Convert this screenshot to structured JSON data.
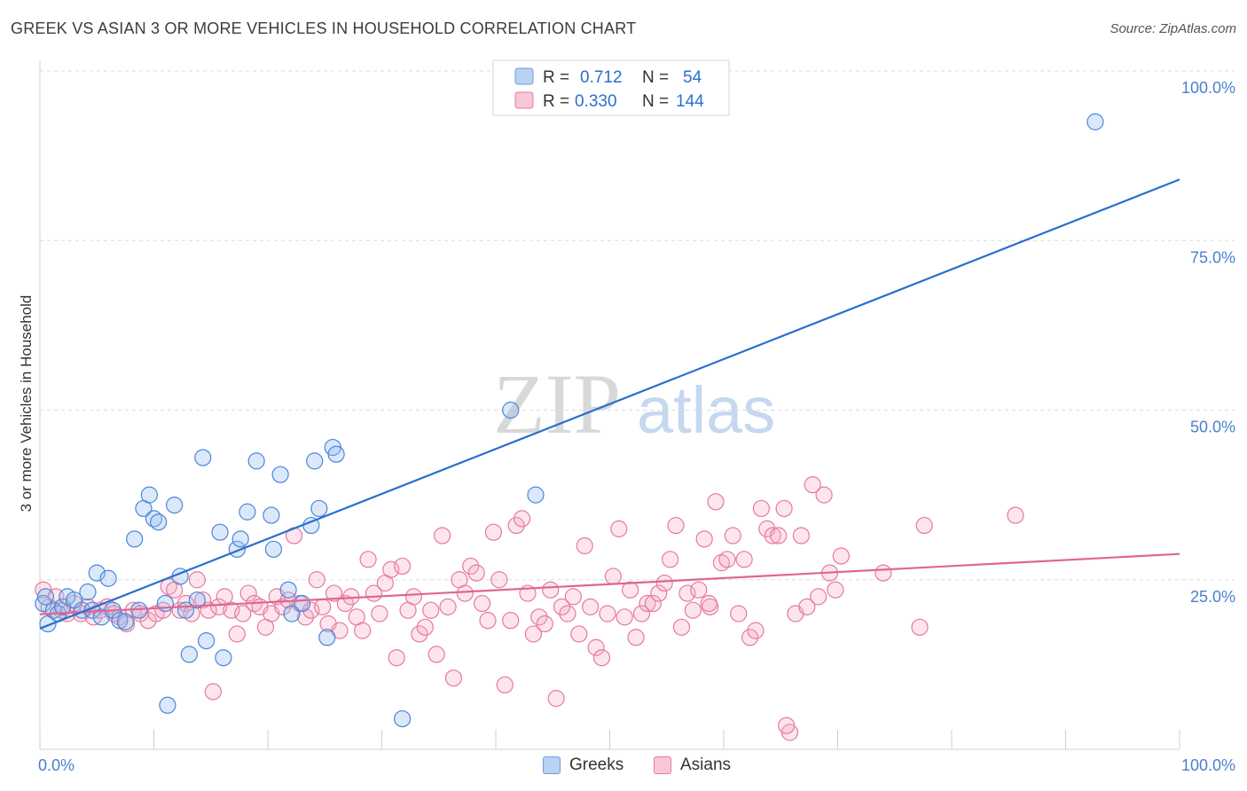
{
  "title": "GREEK VS ASIAN 3 OR MORE VEHICLES IN HOUSEHOLD CORRELATION CHART",
  "source": "Source: ZipAtlas.com",
  "watermark": {
    "zip": "ZIP",
    "atlas": "atlas"
  },
  "colors": {
    "greeks": "#4a86d8",
    "greeks_fill": "rgba(150,190,240,0.35)",
    "greeks_line": "#2a6fcf",
    "asians": "#e8799c",
    "asians_fill": "rgba(245,170,195,0.30)",
    "asians_line": "#e0668f",
    "tick": "#4a7fcf"
  },
  "legend": {
    "greeks": {
      "r_label": "R =",
      "r_value": "0.712",
      "n_label": "N =",
      "n_value": "54"
    },
    "asians": {
      "r_label": "R =",
      "r_value": "0.330",
      "n_label": "N =",
      "n_value": "144"
    }
  },
  "bottom_legend": {
    "greeks": "Greeks",
    "asians": "Asians"
  },
  "chart_data": {
    "type": "scatter",
    "title": "GREEK VS ASIAN 3 OR MORE VEHICLES IN HOUSEHOLD CORRELATION CHART",
    "xlabel": "",
    "ylabel": "3 or more Vehicles in Household",
    "xlim": [
      0,
      100
    ],
    "ylim": [
      0,
      100
    ],
    "x_tick_labels": [
      "0.0%",
      "100.0%"
    ],
    "y_ticks": [
      25,
      50,
      75,
      100
    ],
    "y_tick_labels": [
      "25.0%",
      "50.0%",
      "75.0%",
      "100.0%"
    ],
    "grid": "horizontal dashed",
    "legend_position": "top-center",
    "series": [
      {
        "name": "Greeks",
        "r": 0.712,
        "n": 54,
        "trend": {
          "x": [
            0,
            100
          ],
          "y": [
            17.8,
            84.0
          ]
        },
        "points": [
          [
            0.3,
            21.5
          ],
          [
            0.7,
            18.5
          ],
          [
            1.2,
            20.5
          ],
          [
            1.6,
            20.0
          ],
          [
            2.0,
            21.0
          ],
          [
            2.4,
            22.5
          ],
          [
            3.0,
            22.0
          ],
          [
            3.7,
            20.5
          ],
          [
            4.2,
            23.2
          ],
          [
            4.6,
            20.5
          ],
          [
            5.0,
            26.0
          ],
          [
            5.4,
            19.5
          ],
          [
            6.0,
            25.2
          ],
          [
            6.4,
            20.5
          ],
          [
            7.0,
            19.0
          ],
          [
            7.5,
            18.8
          ],
          [
            8.3,
            31.0
          ],
          [
            8.7,
            20.5
          ],
          [
            9.1,
            35.5
          ],
          [
            9.6,
            37.5
          ],
          [
            10.0,
            34.0
          ],
          [
            10.4,
            33.5
          ],
          [
            11.0,
            21.5
          ],
          [
            11.2,
            6.5
          ],
          [
            11.8,
            36.0
          ],
          [
            12.3,
            25.5
          ],
          [
            12.8,
            20.5
          ],
          [
            13.1,
            14.0
          ],
          [
            13.8,
            22.0
          ],
          [
            14.3,
            43.0
          ],
          [
            14.6,
            16.0
          ],
          [
            15.8,
            32.0
          ],
          [
            16.1,
            13.5
          ],
          [
            17.3,
            29.5
          ],
          [
            17.6,
            31.0
          ],
          [
            18.2,
            35.0
          ],
          [
            19.0,
            42.5
          ],
          [
            20.3,
            34.5
          ],
          [
            20.5,
            29.5
          ],
          [
            21.1,
            40.5
          ],
          [
            21.8,
            23.5
          ],
          [
            22.1,
            20.0
          ],
          [
            23.0,
            21.5
          ],
          [
            23.8,
            33.0
          ],
          [
            24.1,
            42.5
          ],
          [
            24.5,
            35.5
          ],
          [
            25.2,
            16.5
          ],
          [
            25.7,
            44.5
          ],
          [
            26.0,
            43.5
          ],
          [
            31.8,
            4.5
          ],
          [
            41.3,
            50.0
          ],
          [
            43.5,
            37.5
          ],
          [
            92.6,
            92.5
          ],
          [
            0.5,
            22.5
          ]
        ]
      },
      {
        "name": "Asians",
        "r": 0.33,
        "n": 144,
        "trend": {
          "x": [
            0,
            100
          ],
          "y": [
            19.9,
            28.8
          ]
        },
        "points": [
          [
            0.3,
            23.5
          ],
          [
            0.8,
            21.0
          ],
          [
            1.4,
            22.5
          ],
          [
            1.9,
            20.5
          ],
          [
            2.4,
            20.0
          ],
          [
            3.0,
            21.5
          ],
          [
            3.6,
            20.0
          ],
          [
            4.2,
            21.0
          ],
          [
            4.7,
            19.5
          ],
          [
            5.3,
            20.5
          ],
          [
            5.9,
            21.0
          ],
          [
            6.5,
            20.0
          ],
          [
            7.0,
            19.5
          ],
          [
            7.6,
            18.5
          ],
          [
            8.2,
            20.5
          ],
          [
            8.8,
            20.0
          ],
          [
            9.5,
            19.0
          ],
          [
            10.2,
            20.0
          ],
          [
            10.8,
            20.5
          ],
          [
            11.3,
            24.0
          ],
          [
            11.8,
            23.5
          ],
          [
            12.3,
            20.5
          ],
          [
            12.8,
            21.5
          ],
          [
            13.3,
            20.0
          ],
          [
            13.8,
            25.0
          ],
          [
            14.3,
            22.0
          ],
          [
            14.8,
            20.5
          ],
          [
            15.2,
            8.5
          ],
          [
            15.7,
            21.0
          ],
          [
            16.2,
            22.5
          ],
          [
            16.8,
            20.5
          ],
          [
            17.3,
            17.0
          ],
          [
            17.8,
            20.0
          ],
          [
            18.3,
            23.0
          ],
          [
            18.8,
            21.5
          ],
          [
            19.3,
            21.0
          ],
          [
            19.8,
            18.0
          ],
          [
            20.3,
            20.0
          ],
          [
            20.8,
            22.5
          ],
          [
            21.3,
            21.0
          ],
          [
            21.8,
            22.0
          ],
          [
            22.3,
            31.5
          ],
          [
            22.8,
            21.5
          ],
          [
            23.3,
            19.5
          ],
          [
            23.8,
            20.5
          ],
          [
            24.3,
            25.0
          ],
          [
            24.8,
            21.0
          ],
          [
            25.3,
            18.5
          ],
          [
            25.8,
            23.0
          ],
          [
            26.3,
            17.5
          ],
          [
            26.8,
            21.5
          ],
          [
            27.3,
            22.5
          ],
          [
            27.8,
            19.5
          ],
          [
            28.3,
            17.5
          ],
          [
            28.8,
            28.0
          ],
          [
            29.3,
            23.0
          ],
          [
            29.8,
            20.0
          ],
          [
            30.3,
            24.5
          ],
          [
            30.8,
            26.5
          ],
          [
            31.3,
            13.5
          ],
          [
            31.8,
            27.0
          ],
          [
            32.3,
            20.5
          ],
          [
            32.8,
            22.5
          ],
          [
            33.3,
            17.0
          ],
          [
            33.8,
            18.0
          ],
          [
            34.3,
            20.5
          ],
          [
            34.8,
            14.0
          ],
          [
            35.3,
            31.5
          ],
          [
            35.8,
            21.0
          ],
          [
            36.3,
            10.5
          ],
          [
            36.8,
            25.0
          ],
          [
            37.3,
            23.0
          ],
          [
            37.8,
            27.0
          ],
          [
            38.3,
            26.0
          ],
          [
            38.8,
            21.5
          ],
          [
            39.3,
            19.0
          ],
          [
            39.8,
            32.0
          ],
          [
            40.3,
            25.0
          ],
          [
            40.8,
            9.5
          ],
          [
            41.3,
            19.0
          ],
          [
            41.8,
            33.0
          ],
          [
            42.3,
            34.0
          ],
          [
            42.8,
            23.0
          ],
          [
            43.3,
            17.0
          ],
          [
            43.8,
            19.5
          ],
          [
            44.3,
            18.5
          ],
          [
            44.8,
            23.5
          ],
          [
            45.3,
            7.5
          ],
          [
            45.8,
            21.0
          ],
          [
            46.3,
            20.0
          ],
          [
            46.8,
            22.5
          ],
          [
            47.3,
            17.0
          ],
          [
            47.8,
            30.0
          ],
          [
            48.3,
            21.0
          ],
          [
            48.8,
            15.0
          ],
          [
            49.3,
            13.5
          ],
          [
            49.8,
            20.0
          ],
          [
            50.3,
            25.5
          ],
          [
            50.8,
            32.5
          ],
          [
            51.3,
            19.5
          ],
          [
            51.8,
            23.5
          ],
          [
            52.3,
            16.5
          ],
          [
            52.8,
            20.0
          ],
          [
            53.3,
            21.5
          ],
          [
            53.8,
            21.5
          ],
          [
            54.3,
            23.0
          ],
          [
            54.8,
            24.5
          ],
          [
            55.3,
            28.0
          ],
          [
            55.8,
            33.0
          ],
          [
            56.3,
            18.0
          ],
          [
            56.8,
            23.0
          ],
          [
            57.3,
            20.5
          ],
          [
            57.8,
            23.5
          ],
          [
            58.3,
            31.0
          ],
          [
            58.8,
            21.0
          ],
          [
            59.3,
            36.5
          ],
          [
            59.8,
            27.5
          ],
          [
            60.3,
            28.0
          ],
          [
            60.8,
            31.5
          ],
          [
            61.3,
            20.0
          ],
          [
            61.8,
            28.0
          ],
          [
            62.3,
            16.5
          ],
          [
            62.8,
            17.5
          ],
          [
            63.3,
            35.5
          ],
          [
            63.8,
            32.5
          ],
          [
            64.3,
            31.5
          ],
          [
            64.8,
            31.5
          ],
          [
            65.3,
            35.5
          ],
          [
            65.8,
            2.5
          ],
          [
            66.3,
            20.0
          ],
          [
            66.8,
            31.5
          ],
          [
            67.3,
            21.0
          ],
          [
            67.8,
            39.0
          ],
          [
            68.3,
            22.5
          ],
          [
            68.8,
            37.5
          ],
          [
            69.3,
            26.0
          ],
          [
            69.8,
            23.5
          ],
          [
            70.3,
            28.5
          ],
          [
            74.0,
            26.0
          ],
          [
            77.2,
            18.0
          ],
          [
            77.6,
            33.0
          ],
          [
            85.6,
            34.5
          ],
          [
            65.5,
            3.5
          ],
          [
            58.7,
            21.5
          ]
        ]
      }
    ]
  }
}
